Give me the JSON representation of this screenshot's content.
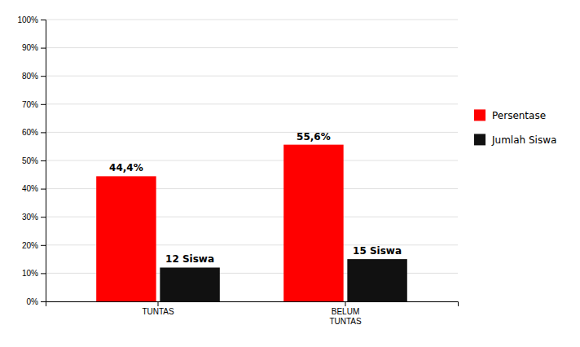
{
  "chart_data": {
    "type": "bar",
    "categories": [
      "TUNTAS",
      "BELUM\nTUNTAS"
    ],
    "series": [
      {
        "name": "Persentase",
        "color": "#FF0000",
        "values": [
          44.4,
          55.6
        ],
        "value_labels": [
          "44,4%",
          "55,6%"
        ]
      },
      {
        "name": "Jumlah Siswa",
        "color": "#111111",
        "values": [
          12,
          15
        ],
        "value_labels": [
          "12 Siswa",
          "15 Siswa"
        ]
      }
    ],
    "ylim": [
      0,
      100
    ],
    "yticks": [
      {
        "value": 0,
        "label": "0%"
      },
      {
        "value": 10,
        "label": "10%"
      },
      {
        "value": 20,
        "label": "20%"
      },
      {
        "value": 30,
        "label": "30%"
      },
      {
        "value": 40,
        "label": "40%"
      },
      {
        "value": 50,
        "label": "50%"
      },
      {
        "value": 60,
        "label": "60%"
      },
      {
        "value": 70,
        "label": "70%"
      },
      {
        "value": 80,
        "label": "80%"
      },
      {
        "value": 90,
        "label": "90%"
      },
      {
        "value": 100,
        "label": "100%"
      }
    ],
    "grid": true,
    "legend": "right",
    "data_labels": true
  }
}
